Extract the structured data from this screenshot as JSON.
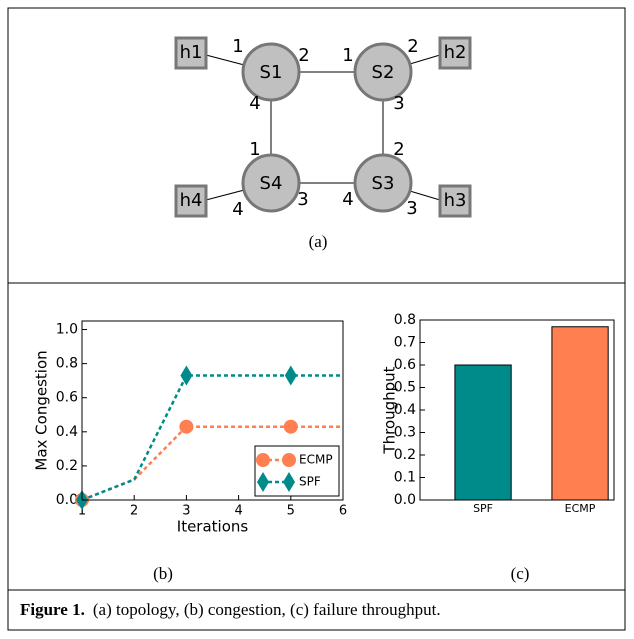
{
  "diagram": {
    "switches": [
      {
        "label": "S1"
      },
      {
        "label": "S2"
      },
      {
        "label": "S3"
      },
      {
        "label": "S4"
      }
    ],
    "hosts": [
      {
        "label": "h1"
      },
      {
        "label": "h2"
      },
      {
        "label": "h3"
      },
      {
        "label": "h4"
      }
    ],
    "ports": [
      "1",
      "2",
      "1",
      "2",
      "4",
      "3",
      "1",
      "2",
      "4",
      "3",
      "4",
      "3"
    ],
    "caption": "(a)"
  },
  "chart_data": [
    {
      "type": "line",
      "caption": "(b)",
      "xlabel": "Iterations",
      "ylabel": "Max Congestion",
      "x": [
        1,
        2,
        3,
        4,
        5,
        6
      ],
      "xlim": [
        1,
        6
      ],
      "xticks": [
        1,
        2,
        3,
        4,
        5,
        6
      ],
      "ylim": [
        0,
        1.05
      ],
      "yticks": [
        {
          "value": 0,
          "label": "0.0"
        },
        {
          "value": 0.2,
          "label": "0.2"
        },
        {
          "value": 0.4,
          "label": "0.4"
        },
        {
          "value": 0.6,
          "label": "0.6"
        },
        {
          "value": 0.8,
          "label": "0.8"
        },
        {
          "value": 1,
          "label": "1.0"
        }
      ],
      "markevery": 2,
      "legend": "lower right",
      "series": [
        {
          "name": "ECMP",
          "color": "#ff7f50",
          "marker": "circle",
          "values": [
            0,
            0.12,
            0.43,
            0.43,
            0.43,
            0.43
          ]
        },
        {
          "name": "SPF",
          "color": "#008b8b",
          "marker": "diamond",
          "values": [
            0,
            0.12,
            0.73,
            0.73,
            0.73,
            0.73
          ]
        }
      ]
    },
    {
      "type": "bar",
      "caption": "(c)",
      "ylabel": "Throughput",
      "categories": [
        "SPF",
        "ECMP"
      ],
      "values": [
        0.6,
        0.77
      ],
      "colors": [
        "#008b8b",
        "#ff7f50"
      ],
      "ylim": [
        0,
        0.8
      ],
      "yticks": [
        {
          "value": 0,
          "label": "0.0"
        },
        {
          "value": 0.1,
          "label": "0.1"
        },
        {
          "value": 0.2,
          "label": "0.2"
        },
        {
          "value": 0.3,
          "label": "0.3"
        },
        {
          "value": 0.4,
          "label": "0.4"
        },
        {
          "value": 0.5,
          "label": "0.5"
        },
        {
          "value": 0.6,
          "label": "0.6"
        },
        {
          "value": 0.7,
          "label": "0.7"
        },
        {
          "value": 0.8,
          "label": "0.8"
        }
      ]
    }
  ],
  "figure_caption": {
    "label": "Figure 1.",
    "text": "(a) topology, (b) congestion, (c) failure throughput."
  }
}
